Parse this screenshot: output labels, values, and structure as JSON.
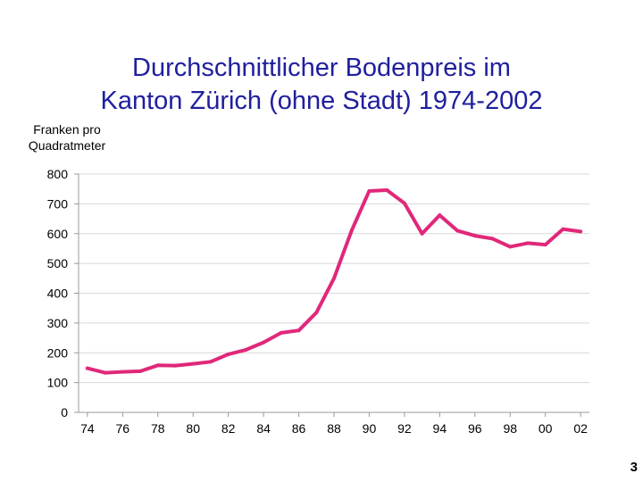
{
  "page_number": "3",
  "chart_data": {
    "type": "line",
    "title_line1": "Durchschnittlicher Bodenpreis im",
    "title_line2": "Kanton Zürich (ohne Stadt) 1974-2002",
    "ylabel_line1": "Franken pro",
    "ylabel_line2": "Quadratmeter",
    "xlabel": "",
    "ylim": [
      0,
      800
    ],
    "xlim": [
      1973.5,
      2002.5
    ],
    "y_ticks": [
      0,
      100,
      200,
      300,
      400,
      500,
      600,
      700,
      800
    ],
    "x_ticks": [
      {
        "value": 1974,
        "label": "74"
      },
      {
        "value": 1976,
        "label": "76"
      },
      {
        "value": 1978,
        "label": "78"
      },
      {
        "value": 1980,
        "label": "80"
      },
      {
        "value": 1982,
        "label": "82"
      },
      {
        "value": 1984,
        "label": "84"
      },
      {
        "value": 1986,
        "label": "86"
      },
      {
        "value": 1988,
        "label": "88"
      },
      {
        "value": 1990,
        "label": "90"
      },
      {
        "value": 1992,
        "label": "92"
      },
      {
        "value": 1994,
        "label": "94"
      },
      {
        "value": 1996,
        "label": "96"
      },
      {
        "value": 1998,
        "label": "98"
      },
      {
        "value": 2000,
        "label": "00"
      },
      {
        "value": 2002,
        "label": "02"
      }
    ],
    "grid": "horizontal",
    "line_color": "#e0287a",
    "axis_color": "#999999",
    "x": [
      1974,
      1975,
      1976,
      1977,
      1978,
      1979,
      1980,
      1981,
      1982,
      1983,
      1984,
      1985,
      1986,
      1987,
      1988,
      1989,
      1990,
      1991,
      1992,
      1993,
      1994,
      1995,
      1996,
      1997,
      1998,
      1999,
      2000,
      2001,
      2002
    ],
    "values": [
      148,
      133,
      136,
      138,
      158,
      157,
      163,
      170,
      195,
      210,
      235,
      267,
      275,
      335,
      450,
      610,
      743,
      746,
      702,
      600,
      662,
      610,
      593,
      583,
      556,
      568,
      563,
      615,
      607
    ]
  }
}
